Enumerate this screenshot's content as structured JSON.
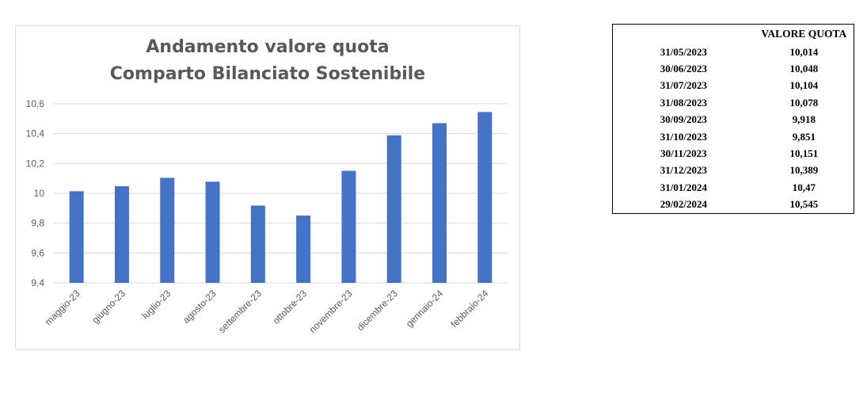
{
  "chart_data": {
    "type": "bar",
    "title": [
      "Andamento valore quota",
      "Comparto Bilanciato Sostenibile"
    ],
    "categories": [
      "maggio-23",
      "giugno-23",
      "luglio-23",
      "agosto-23",
      "settembre-23",
      "ottobre-23",
      "novembre-23",
      "dicembre-23",
      "gennaio-24",
      "febbraio-24"
    ],
    "values": [
      10.014,
      10.048,
      10.104,
      10.078,
      9.918,
      9.851,
      10.151,
      10.389,
      10.47,
      10.545
    ],
    "ylim": [
      9.4,
      10.6
    ],
    "yticks": [
      9.4,
      9.6,
      9.8,
      10,
      10.2,
      10.4,
      10.6
    ],
    "ytick_labels": [
      "9,4",
      "9,6",
      "9,8",
      "10",
      "10,2",
      "10,4",
      "10,6"
    ],
    "bar_color": "#4472C4",
    "grid": true,
    "legend": "none"
  },
  "table": {
    "header": "VALORE QUOTA",
    "rows": [
      {
        "date": "31/05/2023",
        "value": "10,014"
      },
      {
        "date": "30/06/2023",
        "value": "10,048"
      },
      {
        "date": "31/07/2023",
        "value": "10,104"
      },
      {
        "date": "31/08/2023",
        "value": "10,078"
      },
      {
        "date": "30/09/2023",
        "value": "9,918"
      },
      {
        "date": "31/10/2023",
        "value": "9,851"
      },
      {
        "date": "30/11/2023",
        "value": "10,151"
      },
      {
        "date": "31/12/2023",
        "value": "10,389"
      },
      {
        "date": "31/01/2024",
        "value": "10,47"
      },
      {
        "date": "29/02/2024",
        "value": "10,545"
      }
    ]
  }
}
